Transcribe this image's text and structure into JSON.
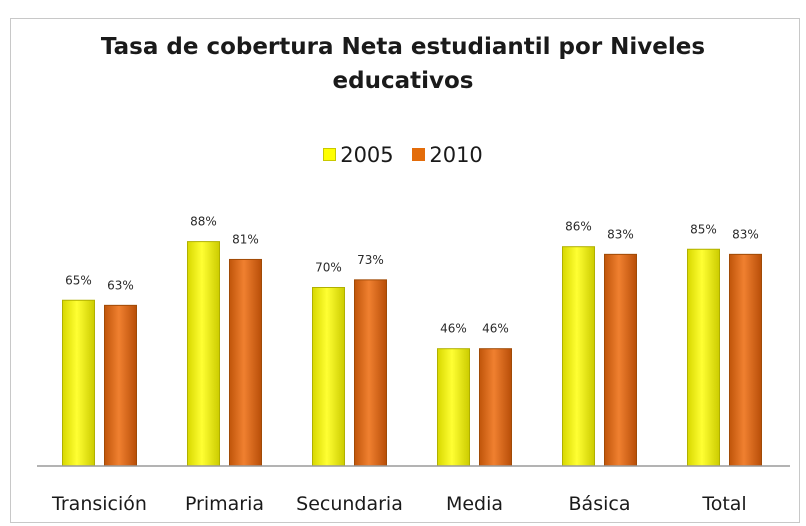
{
  "chart_data": {
    "type": "bar",
    "title": "Tasa de cobertura Neta estudiantil por Niveles educativos",
    "title_lines": [
      "Tasa de cobertura Neta estudiantil por Niveles",
      "educativos"
    ],
    "categories": [
      "Transición",
      "Primaria",
      "Secundaria",
      "Media",
      "Básica",
      "Total"
    ],
    "series": [
      {
        "name": "2005",
        "values": [
          65,
          88,
          70,
          46,
          86,
          85
        ],
        "labels": [
          "65%",
          "88%",
          "70%",
          "46%",
          "86%",
          "85%"
        ],
        "color": "#ffff00"
      },
      {
        "name": "2010",
        "values": [
          63,
          81,
          73,
          46,
          83,
          83
        ],
        "labels": [
          "63%",
          "81%",
          "73%",
          "46%",
          "83%",
          "83%"
        ],
        "color": "#e36c0a"
      }
    ],
    "ylim": [
      0,
      100
    ],
    "grid": false,
    "legend": "top-center"
  }
}
